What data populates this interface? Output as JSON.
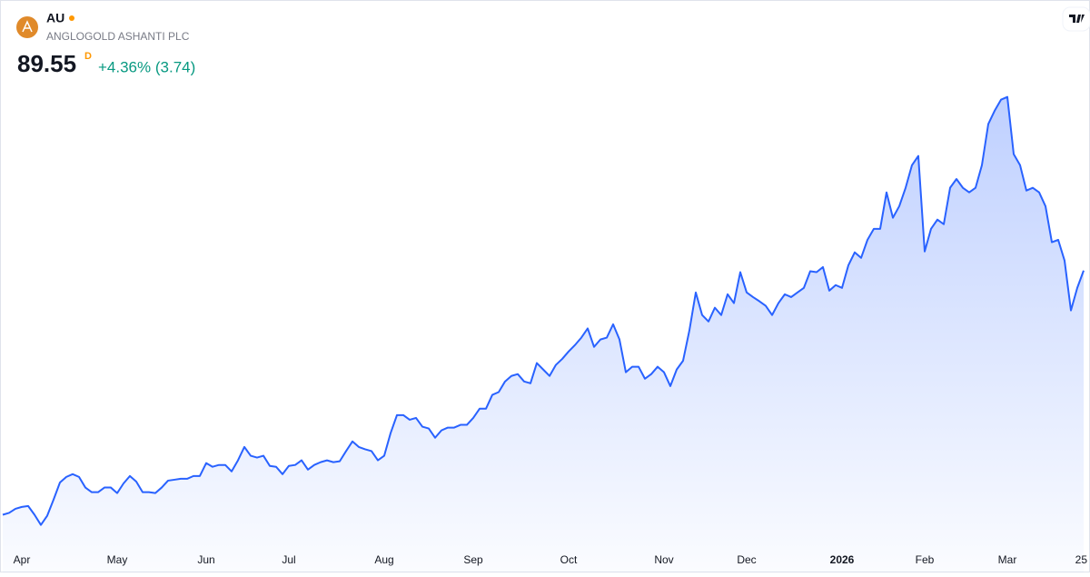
{
  "header": {
    "symbol": "AU",
    "name": "ANGLOGOLD ASHANTI PLC",
    "price": "89.55",
    "interval": "D",
    "change": "+4.36% (3.74)"
  },
  "chart_data": {
    "type": "line",
    "color": "#2962ff",
    "ylim": [
      30,
      136
    ],
    "categories": [
      null,
      null,
      null,
      "Apr",
      null,
      null,
      null,
      null,
      null,
      null,
      null,
      null,
      null,
      null,
      null,
      null,
      null,
      null,
      "May",
      null,
      null,
      null,
      null,
      null,
      null,
      null,
      null,
      null,
      null,
      null,
      null,
      null,
      "Jun",
      null,
      null,
      null,
      null,
      null,
      null,
      null,
      null,
      null,
      null,
      null,
      null,
      "Jul",
      null,
      null,
      null,
      null,
      null,
      null,
      null,
      null,
      null,
      null,
      null,
      null,
      null,
      null,
      "Aug",
      null,
      null,
      null,
      null,
      null,
      null,
      null,
      null,
      null,
      null,
      null,
      null,
      null,
      "Sep",
      null,
      null,
      null,
      null,
      null,
      null,
      null,
      null,
      null,
      null,
      null,
      null,
      null,
      null,
      "Oct",
      null,
      null,
      null,
      null,
      null,
      null,
      null,
      null,
      null,
      null,
      null,
      null,
      null,
      null,
      "Nov",
      null,
      null,
      null,
      null,
      null,
      null,
      null,
      null,
      null,
      null,
      null,
      null,
      "Dec",
      null,
      null,
      null,
      null,
      null,
      null,
      null,
      null,
      null,
      null,
      null,
      null,
      null,
      null,
      "2026",
      null,
      null,
      null,
      null,
      null,
      null,
      null,
      null,
      null,
      null,
      null,
      null,
      "Feb",
      null,
      null,
      null,
      null,
      null,
      null,
      null,
      null,
      null,
      null,
      null,
      null,
      "Mar",
      null,
      null,
      null,
      null,
      null,
      null,
      null,
      null,
      null,
      null,
      null,
      "25"
    ],
    "values": [
      36.6,
      37.0,
      37.9,
      38.3,
      38.5,
      36.6,
      34.4,
      36.4,
      39.9,
      43.6,
      44.8,
      45.4,
      44.8,
      42.5,
      41.5,
      41.5,
      42.5,
      42.5,
      41.3,
      43.4,
      45.0,
      43.8,
      41.5,
      41.5,
      41.3,
      42.5,
      44.0,
      44.2,
      44.4,
      44.4,
      45.0,
      45.0,
      47.8,
      47.0,
      47.4,
      47.4,
      46.0,
      48.4,
      51.3,
      49.4,
      49.0,
      49.4,
      47.2,
      47.0,
      45.4,
      47.2,
      47.4,
      48.4,
      46.4,
      47.4,
      48.0,
      48.4,
      48.0,
      48.2,
      50.4,
      52.5,
      51.3,
      50.8,
      50.4,
      48.4,
      49.4,
      54.3,
      58.2,
      58.2,
      57.2,
      57.6,
      55.7,
      55.3,
      53.3,
      54.9,
      55.5,
      55.5,
      56.1,
      56.1,
      57.6,
      59.6,
      59.6,
      62.6,
      63.2,
      65.5,
      66.7,
      67.1,
      65.5,
      65.1,
      69.5,
      68.1,
      66.7,
      69.1,
      70.4,
      72.0,
      73.4,
      75.0,
      77.0,
      73.0,
      74.6,
      75.0,
      77.9,
      74.6,
      67.5,
      68.7,
      68.7,
      66.1,
      67.1,
      68.7,
      67.5,
      64.5,
      68.1,
      70.0,
      76.6,
      84.8,
      79.9,
      78.5,
      81.5,
      79.9,
      84.4,
      82.5,
      89.2,
      84.8,
      83.8,
      82.9,
      81.9,
      79.9,
      82.5,
      84.4,
      83.8,
      84.8,
      85.8,
      89.4,
      89.2,
      90.3,
      85.2,
      86.4,
      85.8,
      90.7,
      93.5,
      92.3,
      96.2,
      98.6,
      98.6,
      106.5,
      101.0,
      103.5,
      107.5,
      112.4,
      114.4,
      93.7,
      98.6,
      100.6,
      99.6,
      107.5,
      109.4,
      107.5,
      106.5,
      107.5,
      112.4,
      121.3,
      124.2,
      126.6,
      127.2,
      114.8,
      112.4,
      106.9,
      107.5,
      106.5,
      103.5,
      95.7,
      96.2,
      91.7,
      80.9,
      85.81,
      89.55
    ]
  }
}
